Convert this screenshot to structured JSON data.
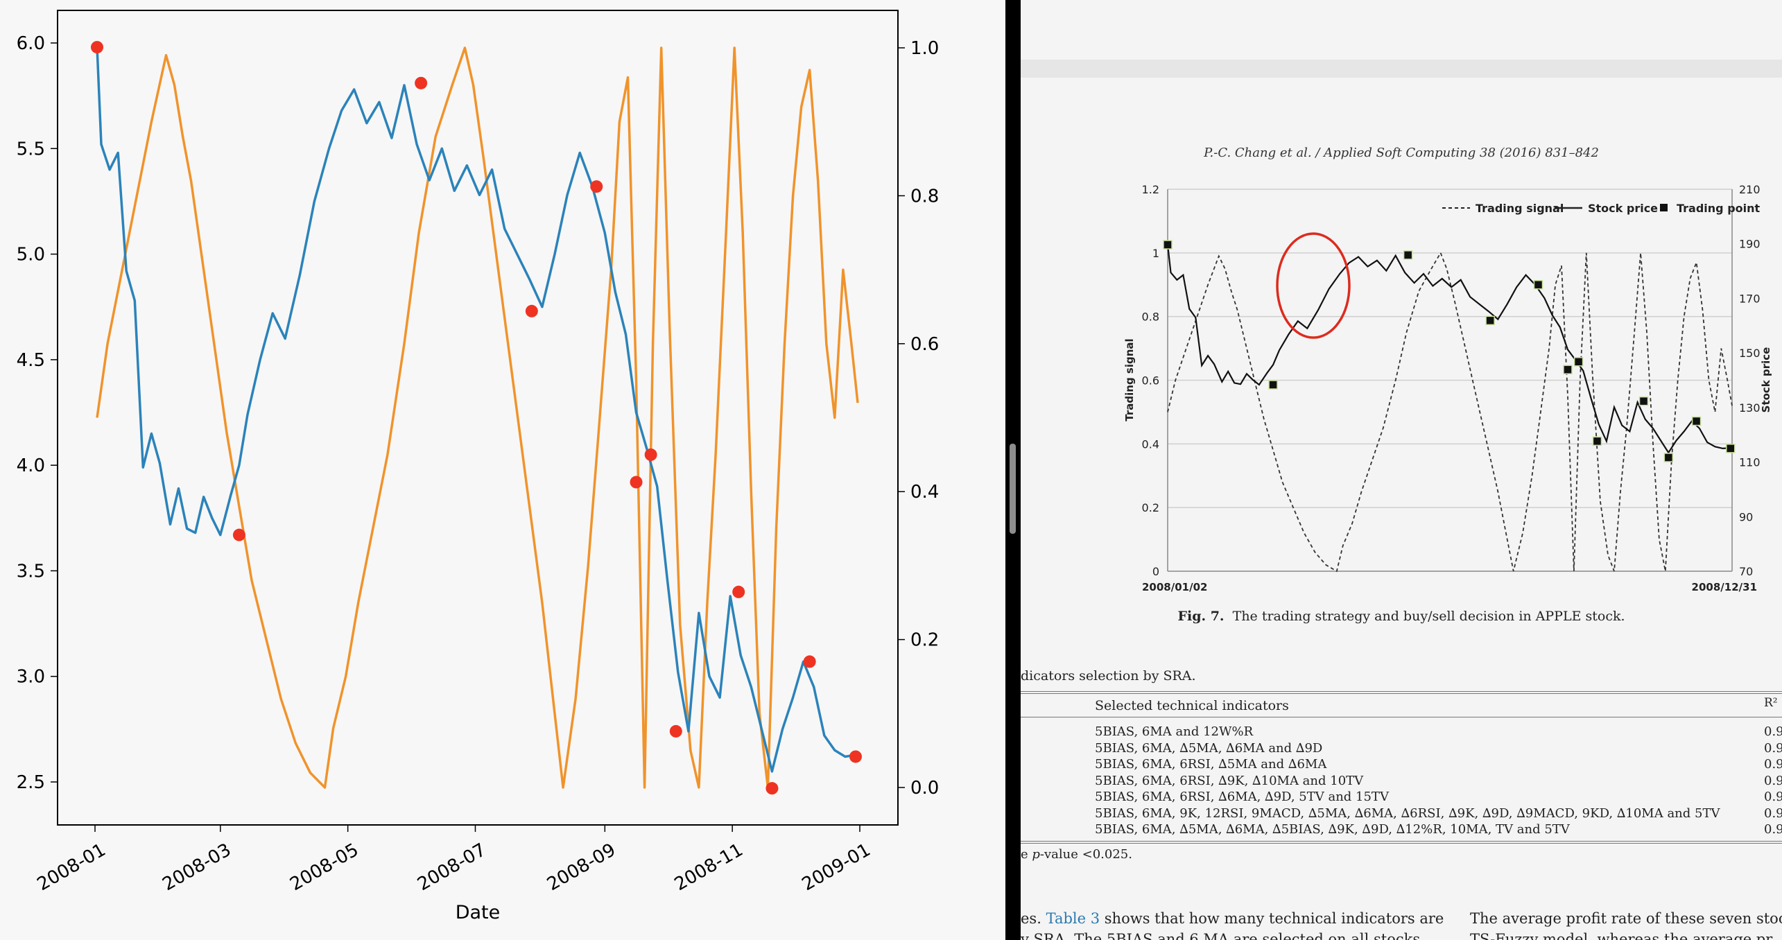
{
  "left_plot": {
    "xlabel": "Date",
    "x_tick_labels": [
      "2008-01",
      "2008-03",
      "2008-05",
      "2008-07",
      "2008-09",
      "2008-11",
      "2009-01"
    ],
    "y_left_ticks": [
      "6.0",
      "5.5",
      "5.0",
      "4.5",
      "4.0",
      "3.5",
      "3.0",
      "2.5"
    ],
    "y_right_ticks": [
      "1.0",
      "0.8",
      "0.6",
      "0.4",
      "0.2",
      "0.0"
    ],
    "colors": {
      "price": "#2b83ba",
      "signal": "#f0932b",
      "marker": "#ee3322"
    }
  },
  "chart_data": {
    "type": "line",
    "xlabel": "Date",
    "ylim_left": [
      2.3,
      6.2
    ],
    "ylim_right": [
      -0.05,
      1.05
    ],
    "series": [
      {
        "axis": "left",
        "color": "#2b83ba",
        "x": [
          "2008-01-02",
          "2008-01-04",
          "2008-01-08",
          "2008-01-12",
          "2008-01-16",
          "2008-01-20",
          "2008-01-24",
          "2008-01-28",
          "2008-02-01",
          "2008-02-06",
          "2008-02-10",
          "2008-02-14",
          "2008-02-18",
          "2008-02-22",
          "2008-02-26",
          "2008-03-01",
          "2008-03-06",
          "2008-03-10",
          "2008-03-14",
          "2008-03-20",
          "2008-03-26",
          "2008-04-01",
          "2008-04-08",
          "2008-04-15",
          "2008-04-22",
          "2008-04-28",
          "2008-05-04",
          "2008-05-10",
          "2008-05-16",
          "2008-05-22",
          "2008-05-28",
          "2008-06-03",
          "2008-06-09",
          "2008-06-15",
          "2008-06-21",
          "2008-06-27",
          "2008-07-03",
          "2008-07-09",
          "2008-07-15",
          "2008-07-21",
          "2008-07-27",
          "2008-08-02",
          "2008-08-08",
          "2008-08-14",
          "2008-08-20",
          "2008-08-26",
          "2008-09-01",
          "2008-09-06",
          "2008-09-11",
          "2008-09-16",
          "2008-09-21",
          "2008-09-26",
          "2008-10-01",
          "2008-10-06",
          "2008-10-11",
          "2008-10-16",
          "2008-10-21",
          "2008-10-26",
          "2008-10-31",
          "2008-11-05",
          "2008-11-10",
          "2008-11-15",
          "2008-11-20",
          "2008-11-25",
          "2008-11-30",
          "2008-12-05",
          "2008-12-10",
          "2008-12-15",
          "2008-12-20",
          "2008-12-25",
          "2008-12-31"
        ],
        "values": [
          5.98,
          5.52,
          5.4,
          5.48,
          4.92,
          4.78,
          3.99,
          4.15,
          4.01,
          3.72,
          3.89,
          3.7,
          3.68,
          3.85,
          3.75,
          3.67,
          3.86,
          4.0,
          4.24,
          4.5,
          4.72,
          4.6,
          4.9,
          5.25,
          5.5,
          5.68,
          5.78,
          5.62,
          5.72,
          5.55,
          5.8,
          5.52,
          5.35,
          5.5,
          5.3,
          5.42,
          5.28,
          5.4,
          5.12,
          5.0,
          4.88,
          4.75,
          5.0,
          5.28,
          5.48,
          5.32,
          5.1,
          4.82,
          4.62,
          4.25,
          4.08,
          3.9,
          3.45,
          3.02,
          2.74,
          3.3,
          3.0,
          2.9,
          3.38,
          3.1,
          2.95,
          2.75,
          2.55,
          2.75,
          2.9,
          3.07,
          2.95,
          2.72,
          2.65,
          2.62,
          2.63
        ]
      },
      {
        "axis": "right",
        "color": "#f0932b",
        "x": [
          "2008-01-02",
          "2008-01-07",
          "2008-01-14",
          "2008-01-21",
          "2008-01-28",
          "2008-02-04",
          "2008-02-08",
          "2008-02-12",
          "2008-02-16",
          "2008-02-21",
          "2008-02-27",
          "2008-03-04",
          "2008-03-10",
          "2008-03-16",
          "2008-03-23",
          "2008-03-30",
          "2008-04-06",
          "2008-04-13",
          "2008-04-20",
          "2008-04-24",
          "2008-04-30",
          "2008-05-06",
          "2008-05-13",
          "2008-05-20",
          "2008-05-28",
          "2008-06-04",
          "2008-06-12",
          "2008-06-20",
          "2008-06-26",
          "2008-06-30",
          "2008-07-05",
          "2008-07-12",
          "2008-07-19",
          "2008-07-26",
          "2008-08-02",
          "2008-08-08",
          "2008-08-12",
          "2008-08-18",
          "2008-08-24",
          "2008-08-29",
          "2008-09-04",
          "2008-09-08",
          "2008-09-12",
          "2008-09-16",
          "2008-09-20",
          "2008-09-24",
          "2008-09-28",
          "2008-10-02",
          "2008-10-07",
          "2008-10-12",
          "2008-10-16",
          "2008-10-20",
          "2008-10-24",
          "2008-10-29",
          "2008-11-02",
          "2008-11-06",
          "2008-11-10",
          "2008-11-14",
          "2008-11-18",
          "2008-11-22",
          "2008-11-26",
          "2008-11-30",
          "2008-12-04",
          "2008-12-08",
          "2008-12-12",
          "2008-12-16",
          "2008-12-20",
          "2008-12-24",
          "2008-12-28",
          "2008-12-31"
        ],
        "values": [
          0.5,
          0.6,
          0.7,
          0.8,
          0.9,
          0.99,
          0.95,
          0.88,
          0.82,
          0.72,
          0.6,
          0.48,
          0.38,
          0.28,
          0.2,
          0.12,
          0.06,
          0.02,
          0.0,
          0.08,
          0.15,
          0.25,
          0.35,
          0.45,
          0.6,
          0.75,
          0.88,
          0.95,
          1.0,
          0.95,
          0.85,
          0.7,
          0.55,
          0.4,
          0.25,
          0.1,
          0.0,
          0.12,
          0.3,
          0.48,
          0.7,
          0.9,
          0.96,
          0.55,
          0.0,
          0.6,
          1.0,
          0.62,
          0.22,
          0.05,
          0.0,
          0.25,
          0.45,
          0.75,
          1.0,
          0.75,
          0.4,
          0.1,
          0.0,
          0.35,
          0.6,
          0.8,
          0.92,
          0.97,
          0.82,
          0.6,
          0.5,
          0.7,
          0.6,
          0.52
        ]
      }
    ],
    "markers": {
      "color": "#ee3322",
      "x": [
        "2008-01-02",
        "2008-03-10",
        "2008-06-05",
        "2008-07-28",
        "2008-08-28",
        "2008-09-16",
        "2008-09-23",
        "2008-10-05",
        "2008-11-04",
        "2008-11-20",
        "2008-12-08",
        "2008-12-30"
      ],
      "values": [
        5.98,
        3.67,
        5.81,
        4.73,
        5.32,
        3.92,
        4.05,
        2.74,
        3.4,
        2.47,
        3.07,
        2.62
      ]
    }
  },
  "document": {
    "journal_header": "P.-C. Chang et al. / Applied Soft Computing 38 (2016) 831–842",
    "figure": {
      "legend": [
        "Trading signal",
        "Stock price",
        "Trading point"
      ],
      "y_left_label": "Trading signal",
      "y_right_label": "Stock price",
      "y_left_ticks": [
        "1.2",
        "1",
        "0.8",
        "0.6",
        "0.4",
        "0.2",
        "0"
      ],
      "y_right_ticks": [
        "210",
        "190",
        "170",
        "150",
        "130",
        "110",
        "90",
        "70"
      ],
      "x_start": "2008/01/02",
      "x_end": "2008/12/31"
    },
    "fig_caption_label": "Fig. 7.",
    "fig_caption_text": "The trading strategy and buy/sell decision in APPLE stock.",
    "table_caption": "dicators selection by SRA.",
    "table_header_indicators": "Selected technical indicators",
    "table_header_r2": "R²",
    "table_rows": [
      "5BIAS, 6MA and 12W%R",
      "5BIAS, 6MA, ∆5MA, ∆6MA and ∆9D",
      "5BIAS, 6MA, 6RSI, ∆5MA and ∆6MA",
      "5BIAS, 6MA, 6RSI, ∆9K, ∆10MA and 10TV",
      "5BIAS, 6MA, 6RSI, ∆6MA, ∆9D, 5TV and 15TV",
      "5BIAS, 6MA, 9K, 12RSI, 9MACD, ∆5MA, ∆6MA, ∆6RSI, ∆9K, ∆9D, ∆9MACD, 9KD, ∆10MA and 5TV",
      "5BIAS, 6MA, ∆5MA, ∆6MA, ∆5BIAS, ∆9K, ∆9D, ∆12%R, 10MA, TV and 5TV"
    ],
    "table_values": [
      "0.9",
      "0.9",
      "0.9",
      "0.9",
      "0.9",
      "0.9",
      "0.9"
    ],
    "table_note_prefix": "e ",
    "table_note_italic": "p",
    "table_note_rest": "-value <0.025.",
    "body_col1_prefix": "es. ",
    "body_col1_link": "Table 3",
    "body_col1_rest": " shows that how many technical indicators are",
    "body_col1_line2": "y SRA. The 5BIAS and 6 MA are selected on all stocks",
    "body_col2_line1": "The average profit rate of these seven stoc",
    "body_col2_line2": "TS-Fuzzy model, whereas the average pr"
  }
}
